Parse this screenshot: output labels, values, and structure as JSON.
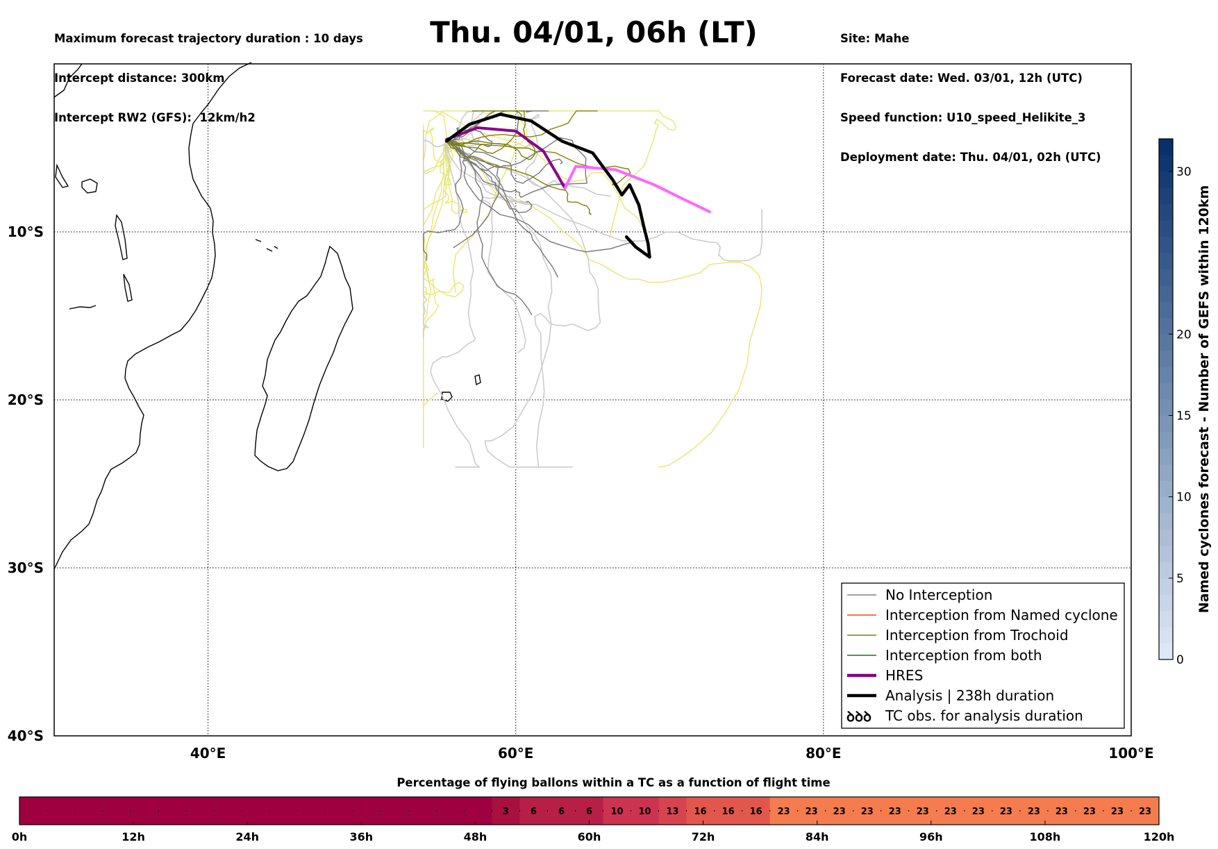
{
  "header": {
    "left_lines": [
      "Maximum forecast trajectory duration : 10 days",
      "Intercept distance: 300km",
      "Intercept RW2 (GFS):  12km/h2"
    ],
    "title": "Thu. 04/01, 06h (LT)",
    "right_lines": [
      "Site: Mahe",
      "Forecast date: Wed. 03/01, 12h (UTC)",
      "Speed function: U10_speed_Helikite_3",
      "Deployment date: Thu. 04/01, 02h (UTC)"
    ]
  },
  "chart_data": [
    {
      "type": "line",
      "xlim": [
        30,
        100
      ],
      "ylim": [
        -40,
        0
      ],
      "grid": true,
      "x_ticks": [
        40,
        60,
        80,
        100
      ],
      "x_tick_labels": [
        "40°E",
        "60°E",
        "80°E",
        "100°E"
      ],
      "y_ticks": [
        -10,
        -20,
        -30,
        -40
      ],
      "y_tick_labels": [
        "10°S",
        "20°S",
        "30°S",
        "40°S"
      ],
      "legend_position": "bottom-right",
      "legend": [
        {
          "label": "No Interception",
          "color": "#808080",
          "style": "line"
        },
        {
          "label": "Interception from Named cyclone",
          "color": "#ff4500",
          "style": "line"
        },
        {
          "label": "Interception from Trochoid",
          "color": "#808000",
          "style": "line"
        },
        {
          "label": "Interception from both",
          "color": "#008000",
          "style": "line"
        },
        {
          "label": "HRES",
          "color": "#800080",
          "style": "thick"
        },
        {
          "label": "Analysis | 238h duration",
          "color": "#000000",
          "style": "thick"
        },
        {
          "label": "TC obs. for analysis duration",
          "color": "#000000",
          "style": "symbol"
        }
      ],
      "series": [
        {
          "name": "HRES",
          "color": "#8b008b",
          "values": [
            [
              55.5,
              -4.5
            ],
            [
              57.5,
              -3.8
            ],
            [
              60,
              -4
            ],
            [
              61.8,
              -5.2
            ],
            [
              62.7,
              -6.6
            ],
            [
              63.2,
              -7.4
            ]
          ]
        },
        {
          "color": "#ff66ff",
          "values": [
            [
              63.2,
              -7.4
            ],
            [
              63.9,
              -6.1
            ],
            [
              66.5,
              -6.3
            ],
            [
              69,
              -7.2
            ],
            [
              71,
              -8.1
            ],
            [
              72.6,
              -8.8
            ]
          ]
        },
        {
          "name": "Analysis | 238h duration",
          "color": "#000000",
          "values": [
            [
              55.5,
              -4.6
            ],
            [
              57,
              -3.6
            ],
            [
              59,
              -3
            ],
            [
              61,
              -3.4
            ],
            [
              63,
              -4.6
            ],
            [
              65,
              -5.3
            ],
            [
              66.3,
              -6.9
            ],
            [
              66.9,
              -7.8
            ],
            [
              67.4,
              -7.2
            ],
            [
              68,
              -8.4
            ],
            [
              68.3,
              -9.6
            ],
            [
              68.6,
              -10.7
            ],
            [
              68.7,
              -11.5
            ],
            [
              67.8,
              -10.9
            ],
            [
              67.2,
              -10.3
            ]
          ]
        }
      ]
    },
    {
      "type": "heatmap",
      "colorbar_label": "Named cyclones forecast - Number of GEFS within 120km",
      "ticks": [
        0,
        5,
        10,
        15,
        20,
        30
      ],
      "range": [
        0,
        32
      ]
    },
    {
      "type": "bar",
      "title": "Percentage of flying ballons within a TC as a function of flight time",
      "x_tick_labels": [
        "0h",
        "12h",
        "24h",
        "36h",
        "48h",
        "60h",
        "72h",
        "84h",
        "96h",
        "108h",
        "120h"
      ],
      "x_range": [
        0,
        120
      ],
      "bin_hours": 3,
      "values": [
        0,
        0,
        0,
        0,
        0,
        0,
        0,
        0,
        0,
        0,
        0,
        0,
        0,
        0,
        0,
        0,
        0,
        3,
        6,
        6,
        6,
        10,
        10,
        13,
        16,
        16,
        16,
        23,
        23,
        23,
        23,
        23,
        23,
        23,
        23,
        23,
        23,
        23,
        23,
        23,
        23
      ]
    }
  ]
}
